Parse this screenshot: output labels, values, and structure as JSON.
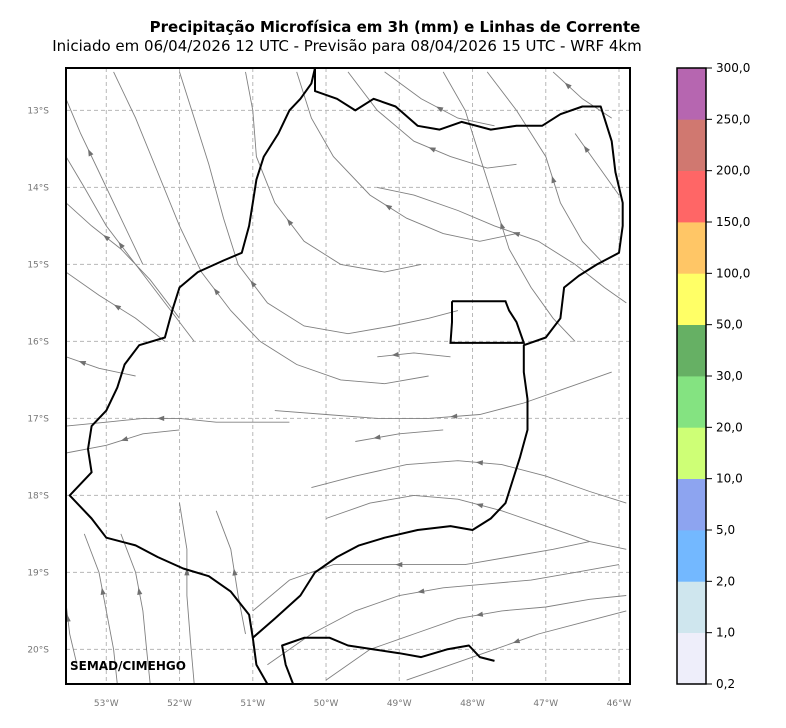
{
  "header": {
    "title": "Precipitação Microfísica em 3h (mm) e Linhas de Corrente",
    "subtitle": "Iniciado em 06/04/2026 12 UTC - Previsão para 08/04/2026 15 UTC - WRF 4km"
  },
  "credit": "SEMAD/CIMEHGO",
  "map": {
    "lon_range": [
      -53.55,
      -45.85
    ],
    "lat_range": [
      -20.45,
      -12.45
    ],
    "lon_ticks": [
      {
        "value": -53,
        "label": "53°W"
      },
      {
        "value": -52,
        "label": "52°W"
      },
      {
        "value": -51,
        "label": "51°W"
      },
      {
        "value": -50,
        "label": "50°W"
      },
      {
        "value": -49,
        "label": "49°W"
      },
      {
        "value": -48,
        "label": "48°W"
      },
      {
        "value": -47,
        "label": "47°W"
      },
      {
        "value": -46,
        "label": "46°W"
      }
    ],
    "lat_ticks": [
      {
        "value": -13,
        "label": "13°S"
      },
      {
        "value": -14,
        "label": "14°S"
      },
      {
        "value": -15,
        "label": "15°S"
      },
      {
        "value": -16,
        "label": "16°S"
      },
      {
        "value": -17,
        "label": "17°S"
      },
      {
        "value": -18,
        "label": "18°S"
      },
      {
        "value": -19,
        "label": "19°S"
      },
      {
        "value": -20,
        "label": "20°S"
      }
    ],
    "grid": true,
    "goias_border": [
      [
        -50.15,
        -12.45
      ],
      [
        -50.2,
        -12.65
      ],
      [
        -50.35,
        -12.85
      ],
      [
        -50.5,
        -13.0
      ],
      [
        -50.65,
        -13.3
      ],
      [
        -50.85,
        -13.6
      ],
      [
        -50.95,
        -13.9
      ],
      [
        -51.0,
        -14.2
      ],
      [
        -51.05,
        -14.5
      ],
      [
        -51.15,
        -14.85
      ],
      [
        -51.4,
        -14.95
      ],
      [
        -51.75,
        -15.1
      ],
      [
        -52.0,
        -15.3
      ],
      [
        -52.1,
        -15.6
      ],
      [
        -52.2,
        -15.95
      ],
      [
        -52.55,
        -16.05
      ],
      [
        -52.75,
        -16.3
      ],
      [
        -52.85,
        -16.6
      ],
      [
        -53.0,
        -16.9
      ],
      [
        -53.2,
        -17.1
      ],
      [
        -53.25,
        -17.4
      ],
      [
        -53.2,
        -17.7
      ],
      [
        -53.5,
        -18.0
      ],
      [
        -53.2,
        -18.3
      ],
      [
        -53.0,
        -18.55
      ],
      [
        -52.6,
        -18.65
      ],
      [
        -52.3,
        -18.8
      ],
      [
        -51.95,
        -18.95
      ],
      [
        -51.6,
        -19.05
      ],
      [
        -51.3,
        -19.25
      ],
      [
        -51.05,
        -19.55
      ],
      [
        -51.0,
        -19.85
      ],
      [
        -50.95,
        -20.2
      ],
      [
        -50.8,
        -20.45
      ]
    ],
    "goias_border_south": [
      [
        -51.0,
        -19.85
      ],
      [
        -50.7,
        -19.6
      ],
      [
        -50.35,
        -19.3
      ],
      [
        -50.15,
        -19.0
      ],
      [
        -49.85,
        -18.8
      ],
      [
        -49.55,
        -18.65
      ],
      [
        -49.2,
        -18.55
      ],
      [
        -48.75,
        -18.45
      ],
      [
        -48.3,
        -18.4
      ],
      [
        -48.0,
        -18.45
      ],
      [
        -47.75,
        -18.3
      ],
      [
        -47.55,
        -18.1
      ],
      [
        -47.45,
        -17.8
      ],
      [
        -47.35,
        -17.5
      ],
      [
        -47.25,
        -17.15
      ],
      [
        -47.25,
        -16.75
      ],
      [
        -47.3,
        -16.4
      ],
      [
        -47.3,
        -16.05
      ],
      [
        -47.0,
        -15.95
      ],
      [
        -46.8,
        -15.7
      ],
      [
        -46.75,
        -15.3
      ],
      [
        -46.55,
        -15.15
      ],
      [
        -46.3,
        -15.0
      ],
      [
        -46.0,
        -14.85
      ],
      [
        -45.95,
        -14.5
      ],
      [
        -45.95,
        -14.2
      ],
      [
        -46.05,
        -13.8
      ],
      [
        -46.1,
        -13.4
      ],
      [
        -46.2,
        -13.1
      ],
      [
        -46.25,
        -12.95
      ],
      [
        -46.5,
        -12.95
      ],
      [
        -46.8,
        -13.05
      ],
      [
        -47.05,
        -13.2
      ],
      [
        -47.4,
        -13.2
      ],
      [
        -47.75,
        -13.25
      ],
      [
        -48.15,
        -13.15
      ],
      [
        -48.45,
        -13.25
      ],
      [
        -48.75,
        -13.2
      ],
      [
        -49.05,
        -12.95
      ],
      [
        -49.35,
        -12.85
      ],
      [
        -49.6,
        -13.0
      ],
      [
        -49.85,
        -12.85
      ],
      [
        -50.15,
        -12.75
      ],
      [
        -50.15,
        -12.45
      ]
    ],
    "goias_south_edge": [
      [
        -50.45,
        -20.45
      ],
      [
        -50.55,
        -20.2
      ],
      [
        -50.6,
        -19.95
      ],
      [
        -50.3,
        -19.85
      ],
      [
        -49.95,
        -19.85
      ],
      [
        -49.7,
        -19.95
      ],
      [
        -49.35,
        -20.0
      ],
      [
        -49.0,
        -20.05
      ],
      [
        -48.7,
        -20.1
      ],
      [
        -48.35,
        -20.0
      ],
      [
        -48.05,
        -19.95
      ],
      [
        -47.9,
        -20.1
      ],
      [
        -47.7,
        -20.15
      ]
    ],
    "df_box": [
      [
        -48.28,
        -15.48
      ],
      [
        -47.55,
        -15.48
      ],
      [
        -47.5,
        -15.6
      ],
      [
        -47.4,
        -15.75
      ],
      [
        -47.3,
        -16.02
      ],
      [
        -48.3,
        -16.02
      ],
      [
        -48.28,
        -15.75
      ],
      [
        -48.28,
        -15.48
      ]
    ],
    "streamlines": [
      [
        [
          -53.55,
          -12.85
        ],
        [
          -53.35,
          -13.3
        ],
        [
          -53.1,
          -13.8
        ],
        [
          -52.8,
          -14.4
        ],
        [
          -52.5,
          -15.0
        ]
      ],
      [
        [
          -53.55,
          -13.6
        ],
        [
          -53.3,
          -14.0
        ],
        [
          -53.0,
          -14.5
        ],
        [
          -52.6,
          -15.0
        ],
        [
          -52.2,
          -15.5
        ],
        [
          -51.8,
          -16.0
        ]
      ],
      [
        [
          -53.55,
          -14.2
        ],
        [
          -53.2,
          -14.5
        ],
        [
          -52.8,
          -14.8
        ],
        [
          -52.4,
          -15.2
        ],
        [
          -52.0,
          -15.7
        ]
      ],
      [
        [
          -53.55,
          -15.1
        ],
        [
          -53.1,
          -15.4
        ],
        [
          -52.6,
          -15.7
        ],
        [
          -52.2,
          -16.0
        ]
      ],
      [
        [
          -53.55,
          -16.2
        ],
        [
          -53.1,
          -16.35
        ],
        [
          -52.6,
          -16.45
        ]
      ],
      [
        [
          -53.55,
          -17.1
        ],
        [
          -53.0,
          -17.05
        ],
        [
          -52.5,
          -17.0
        ],
        [
          -52.0,
          -17.0
        ],
        [
          -51.5,
          -17.05
        ],
        [
          -51.0,
          -17.05
        ],
        [
          -50.5,
          -17.05
        ]
      ],
      [
        [
          -53.55,
          -17.45
        ],
        [
          -53.0,
          -17.35
        ],
        [
          -52.5,
          -17.2
        ],
        [
          -52.0,
          -17.15
        ]
      ],
      [
        [
          -52.9,
          -12.5
        ],
        [
          -52.6,
          -13.1
        ],
        [
          -52.3,
          -13.8
        ],
        [
          -52.0,
          -14.5
        ],
        [
          -51.7,
          -15.1
        ],
        [
          -51.3,
          -15.6
        ],
        [
          -50.9,
          -16.0
        ],
        [
          -50.4,
          -16.3
        ],
        [
          -49.8,
          -16.5
        ],
        [
          -49.2,
          -16.55
        ],
        [
          -48.6,
          -16.45
        ]
      ],
      [
        [
          -52.0,
          -12.5
        ],
        [
          -51.8,
          -13.1
        ],
        [
          -51.6,
          -13.7
        ],
        [
          -51.4,
          -14.4
        ],
        [
          -51.2,
          -15.0
        ],
        [
          -50.8,
          -15.5
        ],
        [
          -50.3,
          -15.8
        ],
        [
          -49.7,
          -15.9
        ],
        [
          -49.1,
          -15.8
        ],
        [
          -48.6,
          -15.7
        ],
        [
          -48.2,
          -15.6
        ]
      ],
      [
        [
          -51.1,
          -12.5
        ],
        [
          -51.0,
          -13.0
        ],
        [
          -50.95,
          -13.6
        ],
        [
          -50.7,
          -14.2
        ],
        [
          -50.3,
          -14.7
        ],
        [
          -49.8,
          -15.0
        ],
        [
          -49.2,
          -15.1
        ],
        [
          -48.7,
          -15.0
        ]
      ],
      [
        [
          -50.4,
          -12.5
        ],
        [
          -50.2,
          -13.1
        ],
        [
          -49.9,
          -13.6
        ],
        [
          -49.4,
          -14.1
        ],
        [
          -48.9,
          -14.4
        ],
        [
          -48.4,
          -14.6
        ],
        [
          -47.9,
          -14.7
        ],
        [
          -47.4,
          -14.6
        ]
      ],
      [
        [
          -49.7,
          -12.5
        ],
        [
          -49.3,
          -13.0
        ],
        [
          -48.8,
          -13.4
        ],
        [
          -48.3,
          -13.6
        ],
        [
          -47.8,
          -13.75
        ],
        [
          -47.4,
          -13.7
        ]
      ],
      [
        [
          -49.2,
          -12.5
        ],
        [
          -48.7,
          -12.85
        ],
        [
          -48.2,
          -13.1
        ],
        [
          -47.7,
          -13.2
        ]
      ],
      [
        [
          -48.4,
          -12.5
        ],
        [
          -48.1,
          -13.0
        ],
        [
          -47.9,
          -13.6
        ],
        [
          -47.7,
          -14.2
        ],
        [
          -47.5,
          -14.8
        ],
        [
          -47.2,
          -15.3
        ],
        [
          -46.9,
          -15.7
        ],
        [
          -46.6,
          -16.0
        ]
      ],
      [
        [
          -47.8,
          -12.5
        ],
        [
          -47.4,
          -13.0
        ],
        [
          -47.0,
          -13.6
        ],
        [
          -46.8,
          -14.2
        ],
        [
          -46.5,
          -14.7
        ],
        [
          -46.2,
          -15.0
        ]
      ],
      [
        [
          -46.9,
          -12.5
        ],
        [
          -46.5,
          -12.85
        ],
        [
          -46.1,
          -13.1
        ]
      ],
      [
        [
          -46.6,
          -13.3
        ],
        [
          -46.3,
          -13.7
        ],
        [
          -46.0,
          -14.1
        ]
      ],
      [
        [
          -49.3,
          -14.0
        ],
        [
          -48.8,
          -14.1
        ],
        [
          -48.2,
          -14.3
        ],
        [
          -47.7,
          -14.5
        ],
        [
          -47.1,
          -14.7
        ],
        [
          -46.6,
          -15.0
        ],
        [
          -46.2,
          -15.3
        ],
        [
          -45.9,
          -15.5
        ]
      ],
      [
        [
          -50.7,
          -16.9
        ],
        [
          -50.0,
          -16.95
        ],
        [
          -49.3,
          -17.0
        ],
        [
          -48.6,
          -17.0
        ],
        [
          -47.9,
          -16.95
        ],
        [
          -47.3,
          -16.8
        ],
        [
          -46.7,
          -16.6
        ],
        [
          -46.1,
          -16.4
        ]
      ],
      [
        [
          -50.2,
          -17.9
        ],
        [
          -49.6,
          -17.75
        ],
        [
          -48.9,
          -17.6
        ],
        [
          -48.2,
          -17.55
        ],
        [
          -47.6,
          -17.6
        ],
        [
          -47.0,
          -17.75
        ],
        [
          -46.4,
          -17.95
        ],
        [
          -45.9,
          -18.1
        ]
      ],
      [
        [
          -50.0,
          -18.3
        ],
        [
          -49.4,
          -18.1
        ],
        [
          -48.8,
          -18.0
        ],
        [
          -48.2,
          -18.05
        ],
        [
          -47.6,
          -18.2
        ],
        [
          -47.0,
          -18.4
        ],
        [
          -46.4,
          -18.6
        ],
        [
          -45.9,
          -18.7
        ]
      ],
      [
        [
          -51.0,
          -19.5
        ],
        [
          -50.5,
          -19.1
        ],
        [
          -49.9,
          -18.9
        ],
        [
          -49.3,
          -18.9
        ],
        [
          -48.7,
          -18.9
        ],
        [
          -48.1,
          -18.9
        ],
        [
          -47.5,
          -18.8
        ],
        [
          -46.9,
          -18.7
        ],
        [
          -46.4,
          -18.6
        ]
      ],
      [
        [
          -50.8,
          -20.2
        ],
        [
          -50.2,
          -19.8
        ],
        [
          -49.6,
          -19.5
        ],
        [
          -49.0,
          -19.3
        ],
        [
          -48.4,
          -19.2
        ],
        [
          -47.8,
          -19.15
        ],
        [
          -47.2,
          -19.1
        ],
        [
          -46.6,
          -19.0
        ],
        [
          -46.0,
          -18.9
        ]
      ],
      [
        [
          -50.0,
          -20.4
        ],
        [
          -49.4,
          -20.0
        ],
        [
          -48.8,
          -19.8
        ],
        [
          -48.2,
          -19.6
        ],
        [
          -47.6,
          -19.5
        ],
        [
          -47.0,
          -19.45
        ],
        [
          -46.4,
          -19.35
        ],
        [
          -45.9,
          -19.3
        ]
      ],
      [
        [
          -48.9,
          -20.4
        ],
        [
          -48.3,
          -20.2
        ],
        [
          -47.7,
          -20.0
        ],
        [
          -47.1,
          -19.8
        ],
        [
          -46.5,
          -19.65
        ],
        [
          -45.9,
          -19.5
        ]
      ],
      [
        [
          -53.3,
          -18.5
        ],
        [
          -53.1,
          -19.0
        ],
        [
          -53.0,
          -19.5
        ],
        [
          -52.9,
          -20.0
        ],
        [
          -52.85,
          -20.45
        ]
      ],
      [
        [
          -52.8,
          -18.5
        ],
        [
          -52.6,
          -19.0
        ],
        [
          -52.5,
          -19.5
        ],
        [
          -52.45,
          -20.0
        ],
        [
          -52.4,
          -20.45
        ]
      ],
      [
        [
          -52.0,
          -18.1
        ],
        [
          -51.9,
          -18.7
        ],
        [
          -51.9,
          -19.3
        ],
        [
          -51.85,
          -19.9
        ],
        [
          -51.8,
          -20.45
        ]
      ],
      [
        [
          -53.55,
          -19.4
        ],
        [
          -53.5,
          -19.8
        ],
        [
          -53.4,
          -20.2
        ]
      ],
      [
        [
          -51.5,
          -18.2
        ],
        [
          -51.3,
          -18.7
        ],
        [
          -51.2,
          -19.3
        ],
        [
          -51.1,
          -19.8
        ]
      ],
      [
        [
          -49.6,
          -17.3
        ],
        [
          -49.0,
          -17.2
        ],
        [
          -48.4,
          -17.15
        ]
      ],
      [
        [
          -49.3,
          -16.2
        ],
        [
          -48.8,
          -16.15
        ],
        [
          -48.3,
          -16.2
        ]
      ]
    ]
  },
  "colorbar": {
    "labels": [
      "0,2",
      "1,0",
      "2,0",
      "5,0",
      "10,0",
      "20,0",
      "30,0",
      "50,0",
      "100,0",
      "150,0",
      "200,0",
      "250,0",
      "300,0"
    ],
    "colors": [
      "#eeeefa",
      "#cfe6ee",
      "#73b8ff",
      "#8da4f0",
      "#ceff76",
      "#84e381",
      "#66b064",
      "#ffff66",
      "#ffc666",
      "#ff6666",
      "#d07870",
      "#b666b0"
    ]
  }
}
